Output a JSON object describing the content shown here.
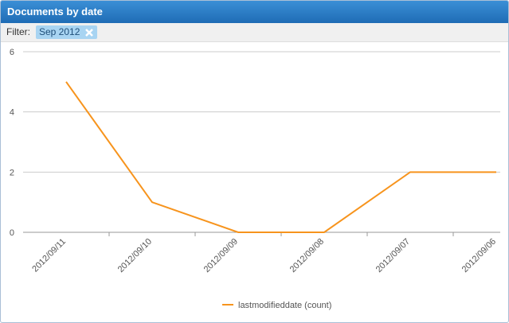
{
  "panel": {
    "title": "Documents by date",
    "filter_label": "Filter:",
    "filter_value": "Sep 2012"
  },
  "chart_data": {
    "type": "line",
    "categories": [
      "2012/09/11",
      "2012/09/10",
      "2012/09/09",
      "2012/09/08",
      "2012/09/07",
      "2012/09/06"
    ],
    "series": [
      {
        "name": "lastmodifieddate (count)",
        "color": "#f7941d",
        "values": [
          5,
          1,
          0,
          0,
          2,
          2
        ]
      }
    ],
    "ylim": [
      0,
      6
    ],
    "yticks": [
      0,
      2,
      4,
      6
    ],
    "grid": true,
    "legend": "bottom"
  }
}
